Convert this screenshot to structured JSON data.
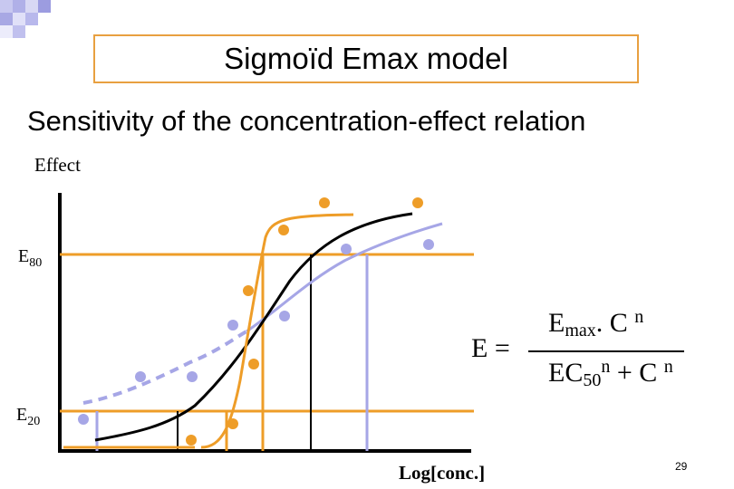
{
  "title": "Sigmoïd Emax model",
  "subtitle": "Sensitivity of the concentration-effect relation",
  "y_axis_label": "Effect",
  "x_axis_label": "Log[conc.]",
  "reference_lines": {
    "upper": "E",
    "upper_sub": "80",
    "lower": "E",
    "lower_sub": "20"
  },
  "formula": {
    "lhs": "E =",
    "num_e": "E",
    "num_sub": "max",
    "num_dot": ". C",
    "num_sup": "n",
    "den_ec": "EC",
    "den_sub": "50",
    "den_sup": "n",
    "den_plus": "+ C",
    "den_sup2": "n"
  },
  "page_number": "29",
  "colors": {
    "orange": "#ee9d28",
    "lavender": "#a6a6e6",
    "black": "#000000",
    "title_border": "#e8a040"
  },
  "chart_data": {
    "type": "scatter",
    "series": [
      {
        "color": "orange",
        "style": "steep sigmoid",
        "points": [
          [
            211,
            486
          ],
          [
            257,
            468
          ],
          [
            280,
            402
          ],
          [
            274,
            321
          ],
          [
            313,
            254
          ],
          [
            358,
            224
          ],
          [
            461,
            224
          ]
        ]
      },
      {
        "color": "lavender",
        "style": "shallow sigmoid (dashed at low end)",
        "points": [
          [
            92,
            463
          ],
          [
            155,
            416
          ],
          [
            212,
            416
          ],
          [
            257,
            359
          ],
          [
            314,
            349
          ],
          [
            382,
            275
          ],
          [
            473,
            270
          ]
        ]
      },
      {
        "color": "black",
        "style": "intermediate sigmoid, no points",
        "points": []
      }
    ]
  }
}
